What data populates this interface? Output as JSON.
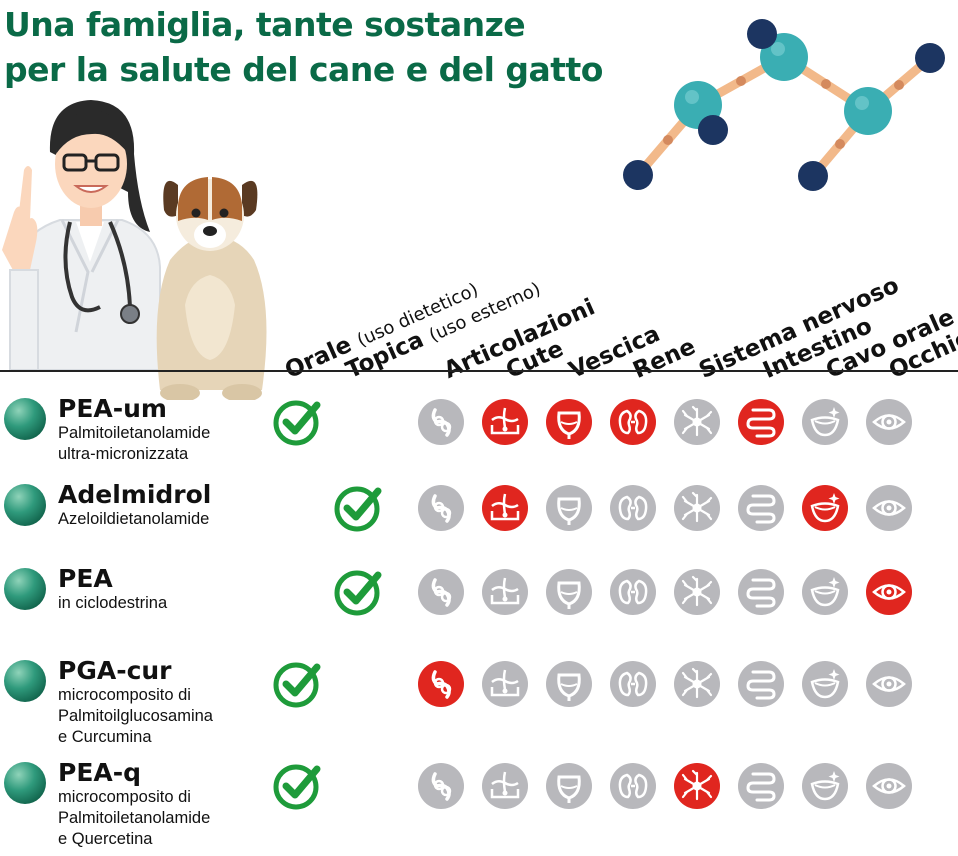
{
  "title": {
    "line1": "Una famiglia, tante sostanze",
    "line2": "per la salute del cane e del gatto"
  },
  "columns": {
    "orale": {
      "main": "Orale",
      "note": "(uso dietetico)"
    },
    "topica": {
      "main": "Topica",
      "note": "(uso esterno)"
    },
    "targets": [
      "Articolazioni",
      "Cute",
      "Vescica",
      "Rene",
      "Sistema nervoso",
      "Intestino",
      "Cavo orale",
      "Occhio"
    ]
  },
  "target_icons": [
    "joint-icon",
    "skin-icon",
    "bladder-icon",
    "kidney-icon",
    "neuron-icon",
    "intestine-icon",
    "mouth-icon",
    "eye-icon"
  ],
  "rows": [
    {
      "name": "PEA-um",
      "desc": "Palmitoiletanolamide\nultra-micronizzata",
      "use": "orale",
      "active": [
        false,
        true,
        true,
        true,
        false,
        true,
        false,
        false
      ]
    },
    {
      "name": "Adelmidrol",
      "desc": "Azeloildietanolamide",
      "use": "topica",
      "active": [
        false,
        true,
        false,
        false,
        false,
        false,
        true,
        false
      ]
    },
    {
      "name": "PEA",
      "desc": "in ciclodestrina",
      "use": "topica",
      "active": [
        false,
        false,
        false,
        false,
        false,
        false,
        false,
        true
      ]
    },
    {
      "name": "PGA-cur",
      "desc": "microcomposito di\nPalmitoilglucosamina\ne Curcumina",
      "use": "orale",
      "active": [
        true,
        false,
        false,
        false,
        false,
        false,
        false,
        false
      ]
    },
    {
      "name": "PEA-q",
      "desc": "microcomposito di\nPalmitoiletanolamide\ne Quercetina",
      "use": "orale",
      "active": [
        false,
        false,
        false,
        false,
        true,
        false,
        false,
        false
      ]
    }
  ],
  "colors": {
    "title_green": "#0a6a47",
    "check_green": "#1e9b3a",
    "active_red": "#e0261f",
    "inactive_gray": "#b8b8bc",
    "molecule_teal": "#3aaeb3",
    "molecule_navy": "#1c3561"
  }
}
